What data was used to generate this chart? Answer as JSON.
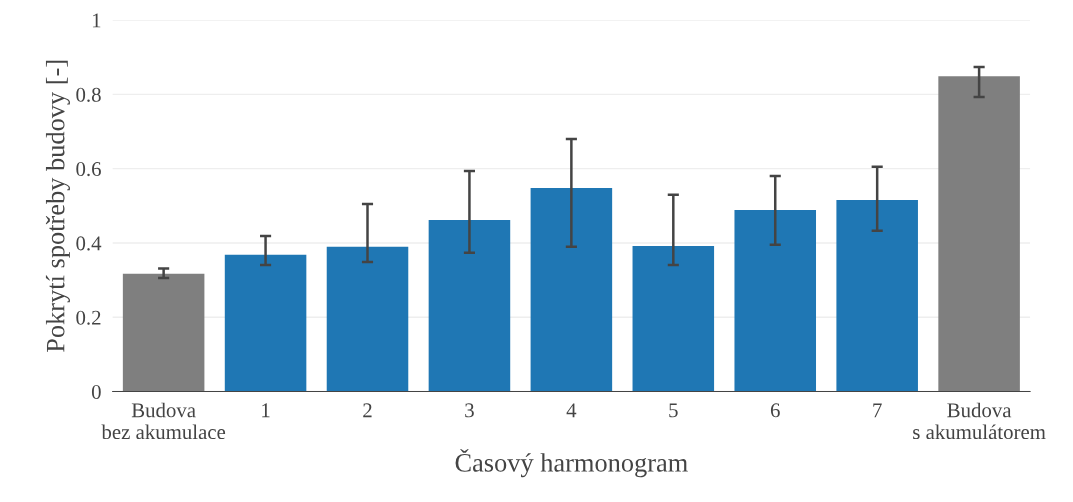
{
  "chart_data": {
    "type": "bar",
    "xlabel": "Časový harmonogram",
    "ylabel": "Pokrytí spotřeby budovy [-]",
    "categories": [
      "Budova\nbez akumulace",
      "1",
      "2",
      "3",
      "4",
      "5",
      "6",
      "7",
      "Budova\ns akumulátorem"
    ],
    "values": [
      0.317,
      0.368,
      0.39,
      0.462,
      0.548,
      0.392,
      0.489,
      0.516,
      0.849
    ],
    "colors": [
      "#7f7f7f",
      "#1f77b4",
      "#1f77b4",
      "#1f77b4",
      "#1f77b4",
      "#1f77b4",
      "#1f77b4",
      "#1f77b4",
      "#7f7f7f"
    ],
    "errors": [
      [
        0.306,
        0.331
      ],
      [
        0.341,
        0.419
      ],
      [
        0.349,
        0.505
      ],
      [
        0.374,
        0.594
      ],
      [
        0.39,
        0.68
      ],
      [
        0.341,
        0.53
      ],
      [
        0.395,
        0.58
      ],
      [
        0.433,
        0.605
      ],
      [
        0.793,
        0.874
      ]
    ],
    "ylim": [
      0,
      1
    ],
    "yticks": [
      0,
      0.2,
      0.4,
      0.6,
      0.8,
      1
    ],
    "grid": "y",
    "legend": false
  }
}
